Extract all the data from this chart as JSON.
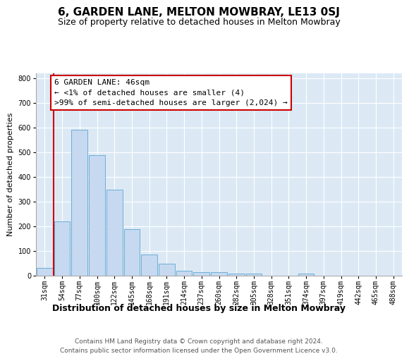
{
  "title": "6, GARDEN LANE, MELTON MOWBRAY, LE13 0SJ",
  "subtitle": "Size of property relative to detached houses in Melton Mowbray",
  "xlabel": "Distribution of detached houses by size in Melton Mowbray",
  "ylabel": "Number of detached properties",
  "bar_color": "#c6d9f0",
  "bar_edge_color": "#6baed6",
  "categories": [
    "31sqm",
    "54sqm",
    "77sqm",
    "100sqm",
    "122sqm",
    "145sqm",
    "168sqm",
    "191sqm",
    "214sqm",
    "237sqm",
    "260sqm",
    "282sqm",
    "305sqm",
    "328sqm",
    "351sqm",
    "374sqm",
    "397sqm",
    "419sqm",
    "442sqm",
    "465sqm",
    "488sqm"
  ],
  "values": [
    32,
    220,
    590,
    488,
    350,
    188,
    85,
    50,
    20,
    15,
    15,
    10,
    8,
    0,
    0,
    8,
    0,
    0,
    0,
    0,
    0
  ],
  "ylim": [
    0,
    820
  ],
  "yticks": [
    0,
    100,
    200,
    300,
    400,
    500,
    600,
    700,
    800
  ],
  "annotation_line1": "6 GARDEN LANE: 46sqm",
  "annotation_line2": "← <1% of detached houses are smaller (4)",
  "annotation_line3": ">99% of semi-detached houses are larger (2,024) →",
  "annotation_box_facecolor": "#ffffff",
  "annotation_box_edgecolor": "#cc0000",
  "red_line_x": 0.5,
  "footer_line1": "Contains HM Land Registry data © Crown copyright and database right 2024.",
  "footer_line2": "Contains public sector information licensed under the Open Government Licence v3.0.",
  "plot_bg_color": "#dce9f5",
  "fig_bg_color": "#ffffff",
  "grid_color": "#ffffff",
  "title_fontsize": 11,
  "subtitle_fontsize": 9,
  "tick_fontsize": 7,
  "ylabel_fontsize": 8,
  "xlabel_fontsize": 9,
  "footer_fontsize": 6.5,
  "annotation_fontsize": 8
}
